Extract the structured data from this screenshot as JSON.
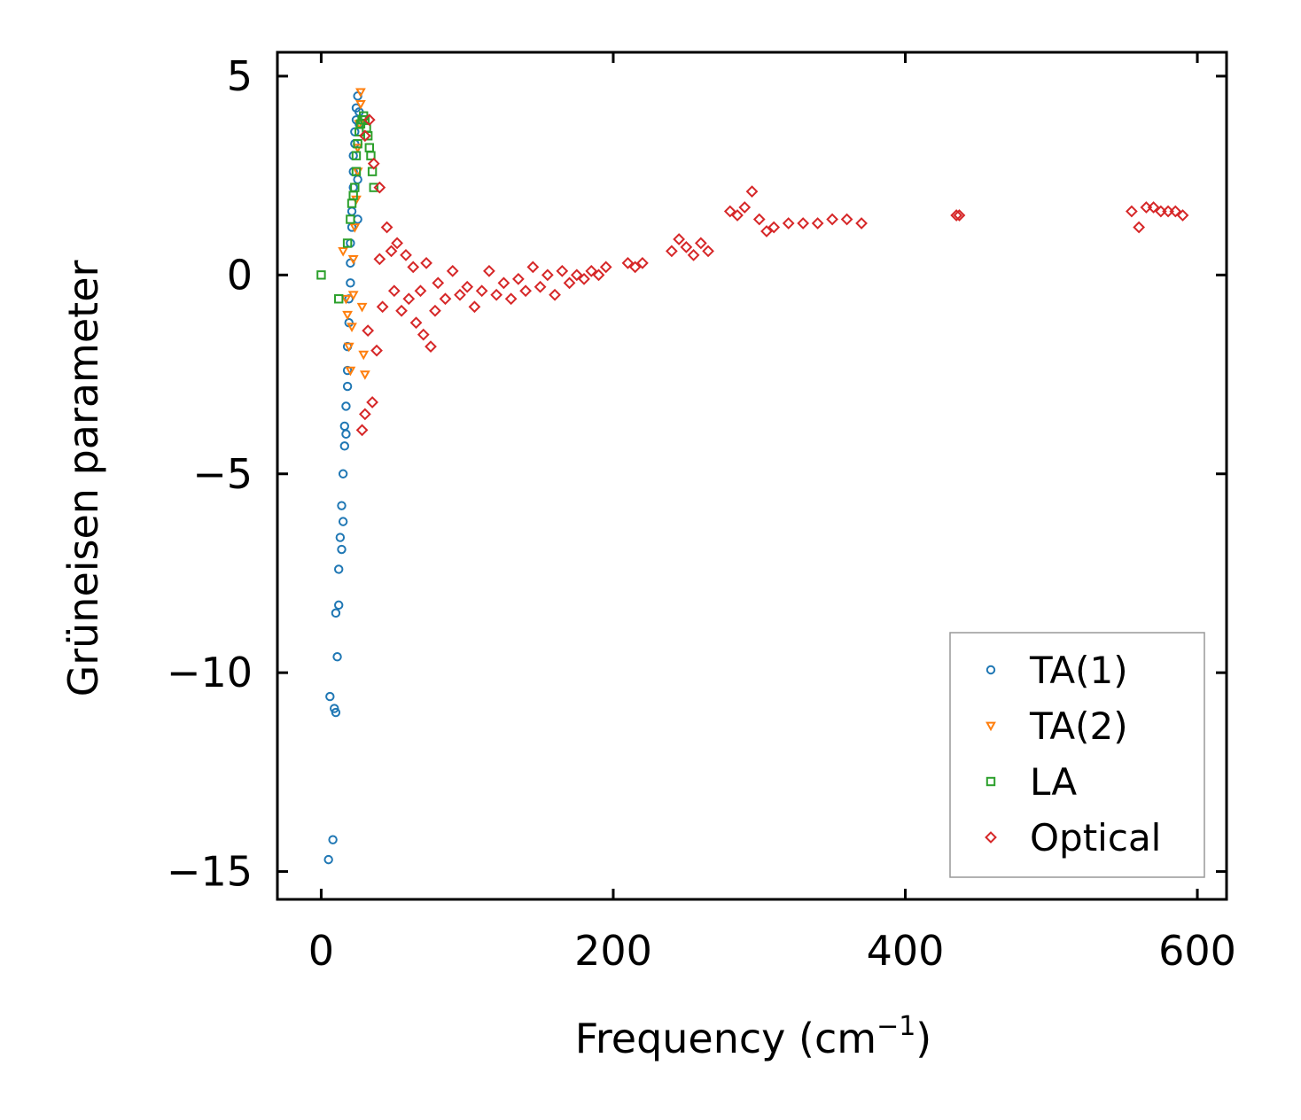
{
  "chart_data": {
    "type": "scatter",
    "title": "",
    "xlabel": "Frequency (cm",
    "xlabel_sup": "−1",
    "xlabel_close": ")",
    "ylabel": "Grüneisen parameter",
    "xlim": [
      -30,
      620
    ],
    "ylim": [
      -15.7,
      5.6
    ],
    "xticks": [
      0,
      200,
      400,
      600
    ],
    "xtick_labels": [
      "0",
      "200",
      "400",
      "600"
    ],
    "yticks": [
      5,
      0,
      -5,
      -10,
      -15
    ],
    "ytick_labels": [
      "5",
      "0",
      "−5",
      "−10",
      "−15"
    ],
    "grid": false,
    "legend_position": "bottom-right",
    "series": [
      {
        "name": "TA(1)",
        "marker": "circle",
        "color": "#1f77b4",
        "x": [
          5,
          6,
          8,
          9,
          10,
          10,
          11,
          12,
          12,
          13,
          14,
          14,
          15,
          15,
          16,
          16,
          17,
          17,
          18,
          18,
          18,
          19,
          19,
          20,
          20,
          20,
          21,
          21,
          22,
          22,
          22,
          23,
          23,
          24,
          24,
          25,
          25,
          25,
          26,
          26
        ],
        "y": [
          -14.7,
          -10.6,
          -14.2,
          -10.9,
          -11.0,
          -8.5,
          -9.6,
          -8.3,
          -7.4,
          -6.6,
          -5.8,
          -6.9,
          -6.2,
          -5.0,
          -4.3,
          -3.8,
          -4.0,
          -3.3,
          -2.8,
          -2.4,
          -1.8,
          -1.2,
          -0.6,
          -0.2,
          0.3,
          0.8,
          1.2,
          1.6,
          2.2,
          2.6,
          3.0,
          3.3,
          3.6,
          3.9,
          4.2,
          4.5,
          2.4,
          1.4,
          3.8,
          4.1
        ]
      },
      {
        "name": "TA(2)",
        "marker": "triangle-down",
        "color": "#ff7f0e",
        "x": [
          15,
          17,
          18,
          19,
          20,
          21,
          22,
          22,
          23,
          24,
          25,
          25,
          26,
          27,
          27,
          28,
          29,
          30
        ],
        "y": [
          0.6,
          -0.6,
          -1.0,
          -1.8,
          -2.4,
          -1.3,
          -0.5,
          0.4,
          1.2,
          1.9,
          2.6,
          3.2,
          3.8,
          4.3,
          4.6,
          -0.8,
          -2.0,
          -2.5
        ]
      },
      {
        "name": "LA",
        "marker": "square",
        "color": "#2ca02c",
        "x": [
          0,
          12,
          18,
          20,
          21,
          22,
          23,
          24,
          24,
          25,
          26,
          27,
          28,
          29,
          30,
          31,
          32,
          33,
          34,
          35,
          36
        ],
        "y": [
          0.0,
          -0.6,
          0.8,
          1.4,
          1.8,
          2.0,
          2.2,
          2.6,
          3.0,
          3.3,
          3.6,
          3.8,
          3.9,
          4.0,
          3.9,
          3.7,
          3.5,
          3.2,
          3.0,
          2.6,
          2.2
        ]
      },
      {
        "name": "Optical",
        "marker": "diamond",
        "color": "#d62728",
        "x": [
          28,
          30,
          30,
          32,
          33,
          35,
          36,
          38,
          40,
          40,
          42,
          45,
          48,
          50,
          52,
          55,
          58,
          60,
          63,
          65,
          68,
          70,
          72,
          75,
          78,
          80,
          85,
          90,
          95,
          100,
          105,
          110,
          115,
          120,
          125,
          130,
          135,
          140,
          145,
          150,
          155,
          160,
          165,
          170,
          175,
          180,
          185,
          190,
          195,
          210,
          215,
          220,
          240,
          245,
          250,
          255,
          260,
          265,
          280,
          285,
          290,
          295,
          300,
          305,
          310,
          320,
          330,
          340,
          350,
          360,
          370,
          435,
          437,
          555,
          560,
          565,
          570,
          575,
          580,
          585,
          590
        ],
        "y": [
          -3.9,
          -3.5,
          3.5,
          -1.4,
          3.9,
          -3.2,
          2.8,
          -1.9,
          2.2,
          0.4,
          -0.8,
          1.2,
          0.6,
          -0.4,
          0.8,
          -0.9,
          0.5,
          -0.6,
          0.2,
          -1.2,
          -0.4,
          -1.5,
          0.3,
          -1.8,
          -0.9,
          -0.2,
          -0.6,
          0.1,
          -0.5,
          -0.3,
          -0.8,
          -0.4,
          0.1,
          -0.5,
          -0.2,
          -0.6,
          -0.1,
          -0.4,
          0.2,
          -0.3,
          0.0,
          -0.5,
          0.1,
          -0.2,
          0.0,
          -0.1,
          0.1,
          0.0,
          0.2,
          0.3,
          0.2,
          0.3,
          0.6,
          0.9,
          0.7,
          0.5,
          0.8,
          0.6,
          1.6,
          1.5,
          1.7,
          2.1,
          1.4,
          1.1,
          1.2,
          1.3,
          1.3,
          1.3,
          1.4,
          1.4,
          1.3,
          1.5,
          1.5,
          1.6,
          1.2,
          1.7,
          1.7,
          1.6,
          1.6,
          1.6,
          1.5
        ]
      }
    ]
  }
}
